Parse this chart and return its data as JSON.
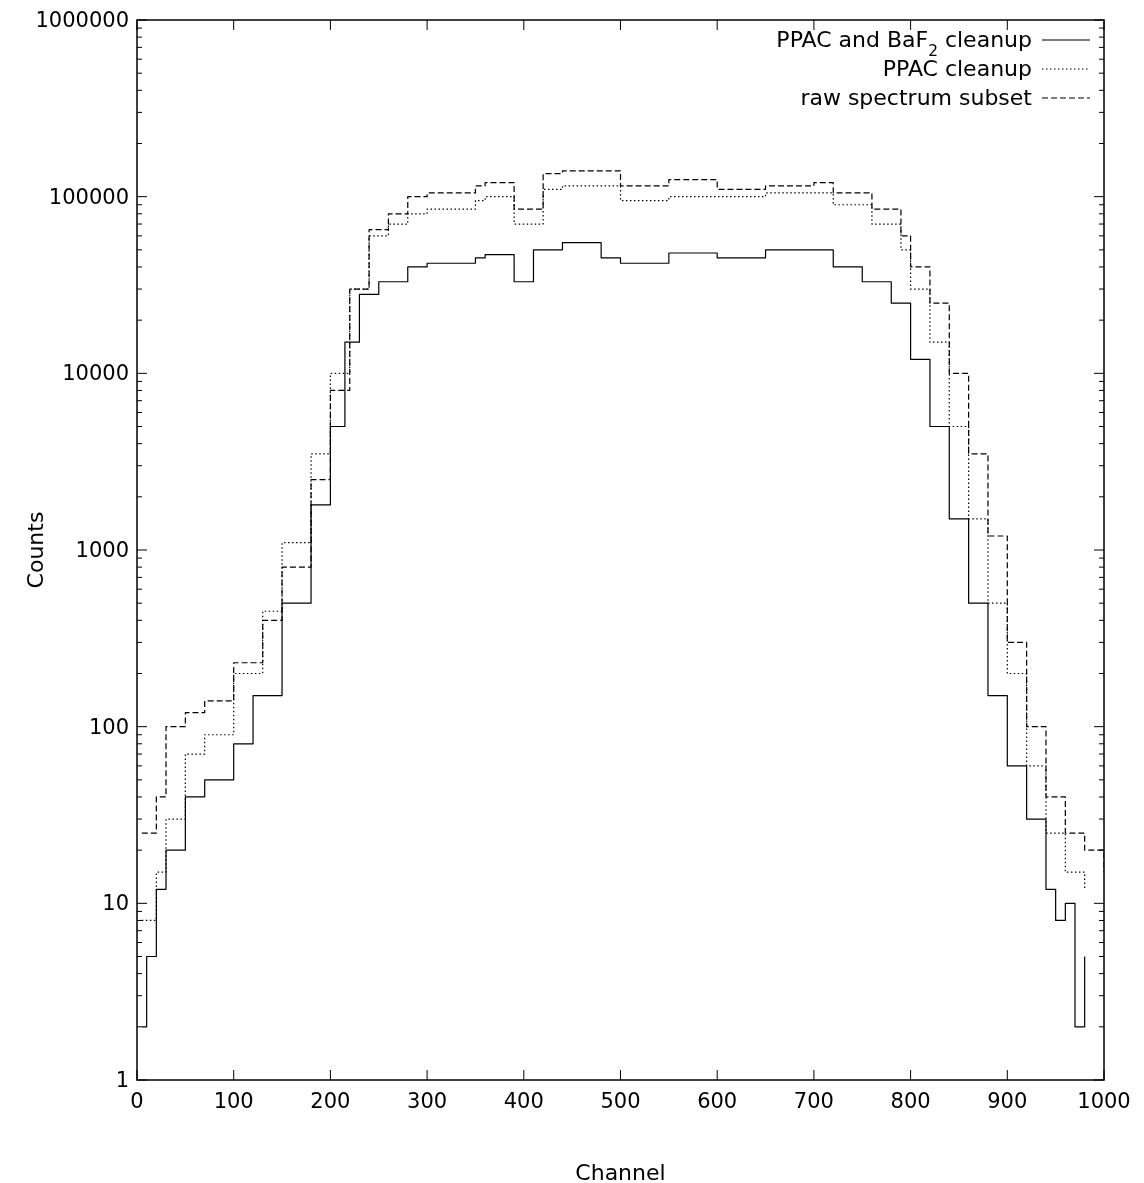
{
  "chart_data": {
    "type": "step",
    "xlabel": "Channel",
    "ylabel": "Counts",
    "log": "y",
    "legend": "top right",
    "grid": false,
    "xlim": [
      0,
      1000
    ],
    "xticks": [
      0,
      100,
      200,
      300,
      400,
      500,
      600,
      700,
      800,
      900,
      1000
    ],
    "ylim": [
      1,
      1000000
    ],
    "yticks": [
      1,
      10,
      100,
      1000,
      10000,
      100000,
      1000000
    ],
    "series": [
      {
        "name": "PPAC and BaF$_{2}$ cleanup",
        "color": "#000000",
        "line_style": "solid",
        "x": [
          5,
          10,
          20,
          30,
          50,
          70,
          100,
          120,
          150,
          180,
          200,
          215,
          230,
          250,
          280,
          300,
          350,
          360,
          390,
          410,
          440,
          480,
          500,
          550,
          600,
          650,
          700,
          720,
          750,
          780,
          800,
          820,
          840,
          860,
          880,
          900,
          920,
          940,
          950,
          960,
          970,
          980
        ],
        "values": [
          2,
          5,
          12,
          20,
          40,
          50,
          80,
          150,
          500,
          1800,
          5000,
          15000,
          28000,
          33000,
          40000,
          42000,
          45000,
          47000,
          33000,
          50000,
          55000,
          45000,
          42000,
          48000,
          45000,
          50000,
          50000,
          40000,
          33000,
          25000,
          12000,
          5000,
          1500,
          500,
          150,
          60,
          30,
          12,
          8,
          10,
          2,
          5
        ]
      },
      {
        "name": "PPAC cleanup",
        "color": "#000000",
        "line_style": "dotted",
        "x": [
          5,
          20,
          30,
          50,
          70,
          100,
          130,
          150,
          180,
          200,
          220,
          240,
          260,
          280,
          300,
          350,
          360,
          390,
          420,
          440,
          500,
          550,
          600,
          650,
          700,
          720,
          760,
          790,
          800,
          820,
          840,
          860,
          880,
          900,
          920,
          940,
          960,
          980
        ],
        "values": [
          8,
          15,
          30,
          70,
          90,
          200,
          450,
          1100,
          3500,
          10000,
          30000,
          60000,
          70000,
          80000,
          85000,
          95000,
          100000,
          70000,
          110000,
          115000,
          95000,
          100000,
          100000,
          105000,
          105000,
          90000,
          70000,
          50000,
          30000,
          15000,
          5000,
          1500,
          500,
          200,
          60,
          25,
          15,
          12
        ]
      },
      {
        "name": "raw spectrum subset",
        "color": "#000000",
        "line_style": "dashed",
        "x": [
          5,
          20,
          30,
          50,
          70,
          100,
          130,
          150,
          180,
          200,
          220,
          240,
          260,
          280,
          300,
          350,
          360,
          390,
          420,
          440,
          500,
          550,
          600,
          650,
          700,
          720,
          760,
          790,
          800,
          820,
          840,
          860,
          880,
          900,
          920,
          940,
          960,
          980,
          1000
        ],
        "values": [
          25,
          40,
          100,
          120,
          140,
          230,
          400,
          800,
          2500,
          8000,
          30000,
          65000,
          80000,
          100000,
          105000,
          115000,
          120000,
          85000,
          135000,
          140000,
          115000,
          125000,
          110000,
          115000,
          120000,
          105000,
          85000,
          60000,
          40000,
          25000,
          10000,
          3500,
          1200,
          300,
          100,
          40,
          25,
          20,
          15
        ]
      }
    ]
  }
}
